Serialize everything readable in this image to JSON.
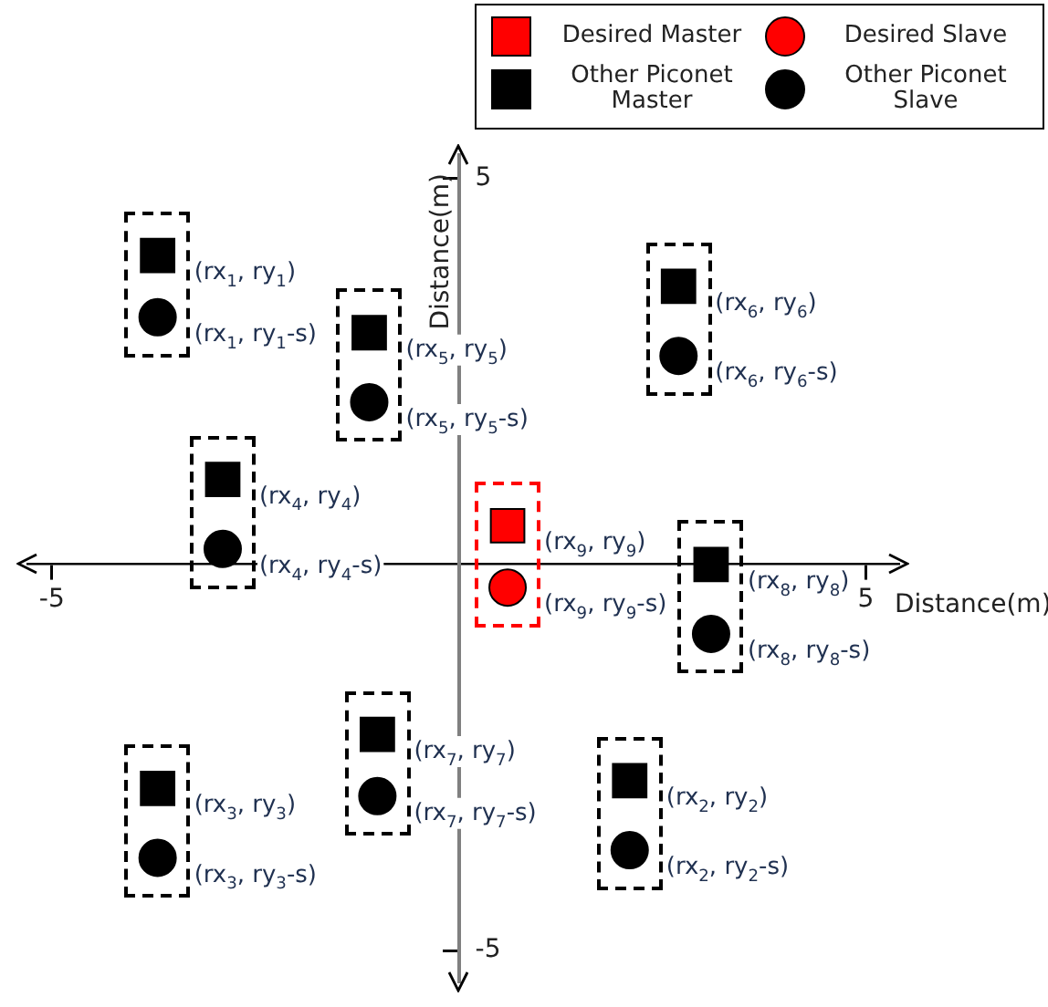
{
  "chart_data": {
    "type": "scatter",
    "xlabel": "Distance(m)",
    "ylabel": "Distance(m)",
    "xlim": [
      -5.3,
      5.4
    ],
    "ylim": [
      -5.4,
      5.3
    ],
    "xticks": [
      -5,
      5
    ],
    "yticks": [
      -5,
      5
    ],
    "legend": "top right",
    "series": [
      {
        "name": "Desired Master",
        "color": "#ff0000",
        "marker": "square",
        "x": [
          0.6
        ],
        "values": [
          0.5
        ],
        "value_labels": [
          "(rx$_{9}$, ry$_{9}$)"
        ]
      },
      {
        "name": "Desired Slave",
        "color": "#ff0000",
        "marker": "circle",
        "x": [
          0.6
        ],
        "values": [
          -0.3
        ],
        "value_labels": [
          "(rx$_{9}$, ry$_{9}$-s)"
        ]
      },
      {
        "name": "Other Piconet Master",
        "color": "#000000",
        "marker": "square",
        "x": [
          -3.7,
          2.1,
          -3.7,
          -2.9,
          -1.1,
          2.7,
          -1.0,
          3.1
        ],
        "values": [
          4.0,
          -2.8,
          -2.9,
          1.1,
          3.0,
          3.6,
          -2.2,
          0.0
        ],
        "value_labels": [
          "(rx$_{1}$, ry$_{1}$)",
          "(rx$_{2}$, ry$_{2}$)",
          "(rx$_{3}$, ry$_{3}$)",
          "(rx$_{4}$, ry$_{4}$)",
          "(rx$_{5}$, ry$_{5}$)",
          "(rx$_{6}$, ry$_{6}$)",
          "(rx$_{7}$, ry$_{7}$)",
          "(rx$_{8}$, ry$_{8}$)"
        ]
      },
      {
        "name": "Other Piconet Slave",
        "color": "#000000",
        "marker": "circle",
        "x": [
          -3.7,
          2.1,
          -3.7,
          -2.9,
          -1.1,
          2.7,
          -1.0,
          3.1
        ],
        "values": [
          3.2,
          -3.7,
          -3.8,
          0.2,
          2.1,
          2.7,
          -3.0,
          -0.9
        ],
        "value_labels": [
          "(rx$_{1}$, ry$_{1}$-s)",
          "(rx$_{2}$, ry$_{2}$-s)",
          "(rx$_{3}$, ry$_{3}$-s)",
          "(rx$_{4}$, ry$_{4}$-s)",
          "(rx$_{5}$, ry$_{5}$-s)",
          "(rx$_{6}$, ry$_{6}$-s)",
          "(rx$_{7}$, ry$_{7}$-s)",
          "(rx$_{8}$, ry$_{8}$-s)"
        ]
      }
    ]
  }
}
